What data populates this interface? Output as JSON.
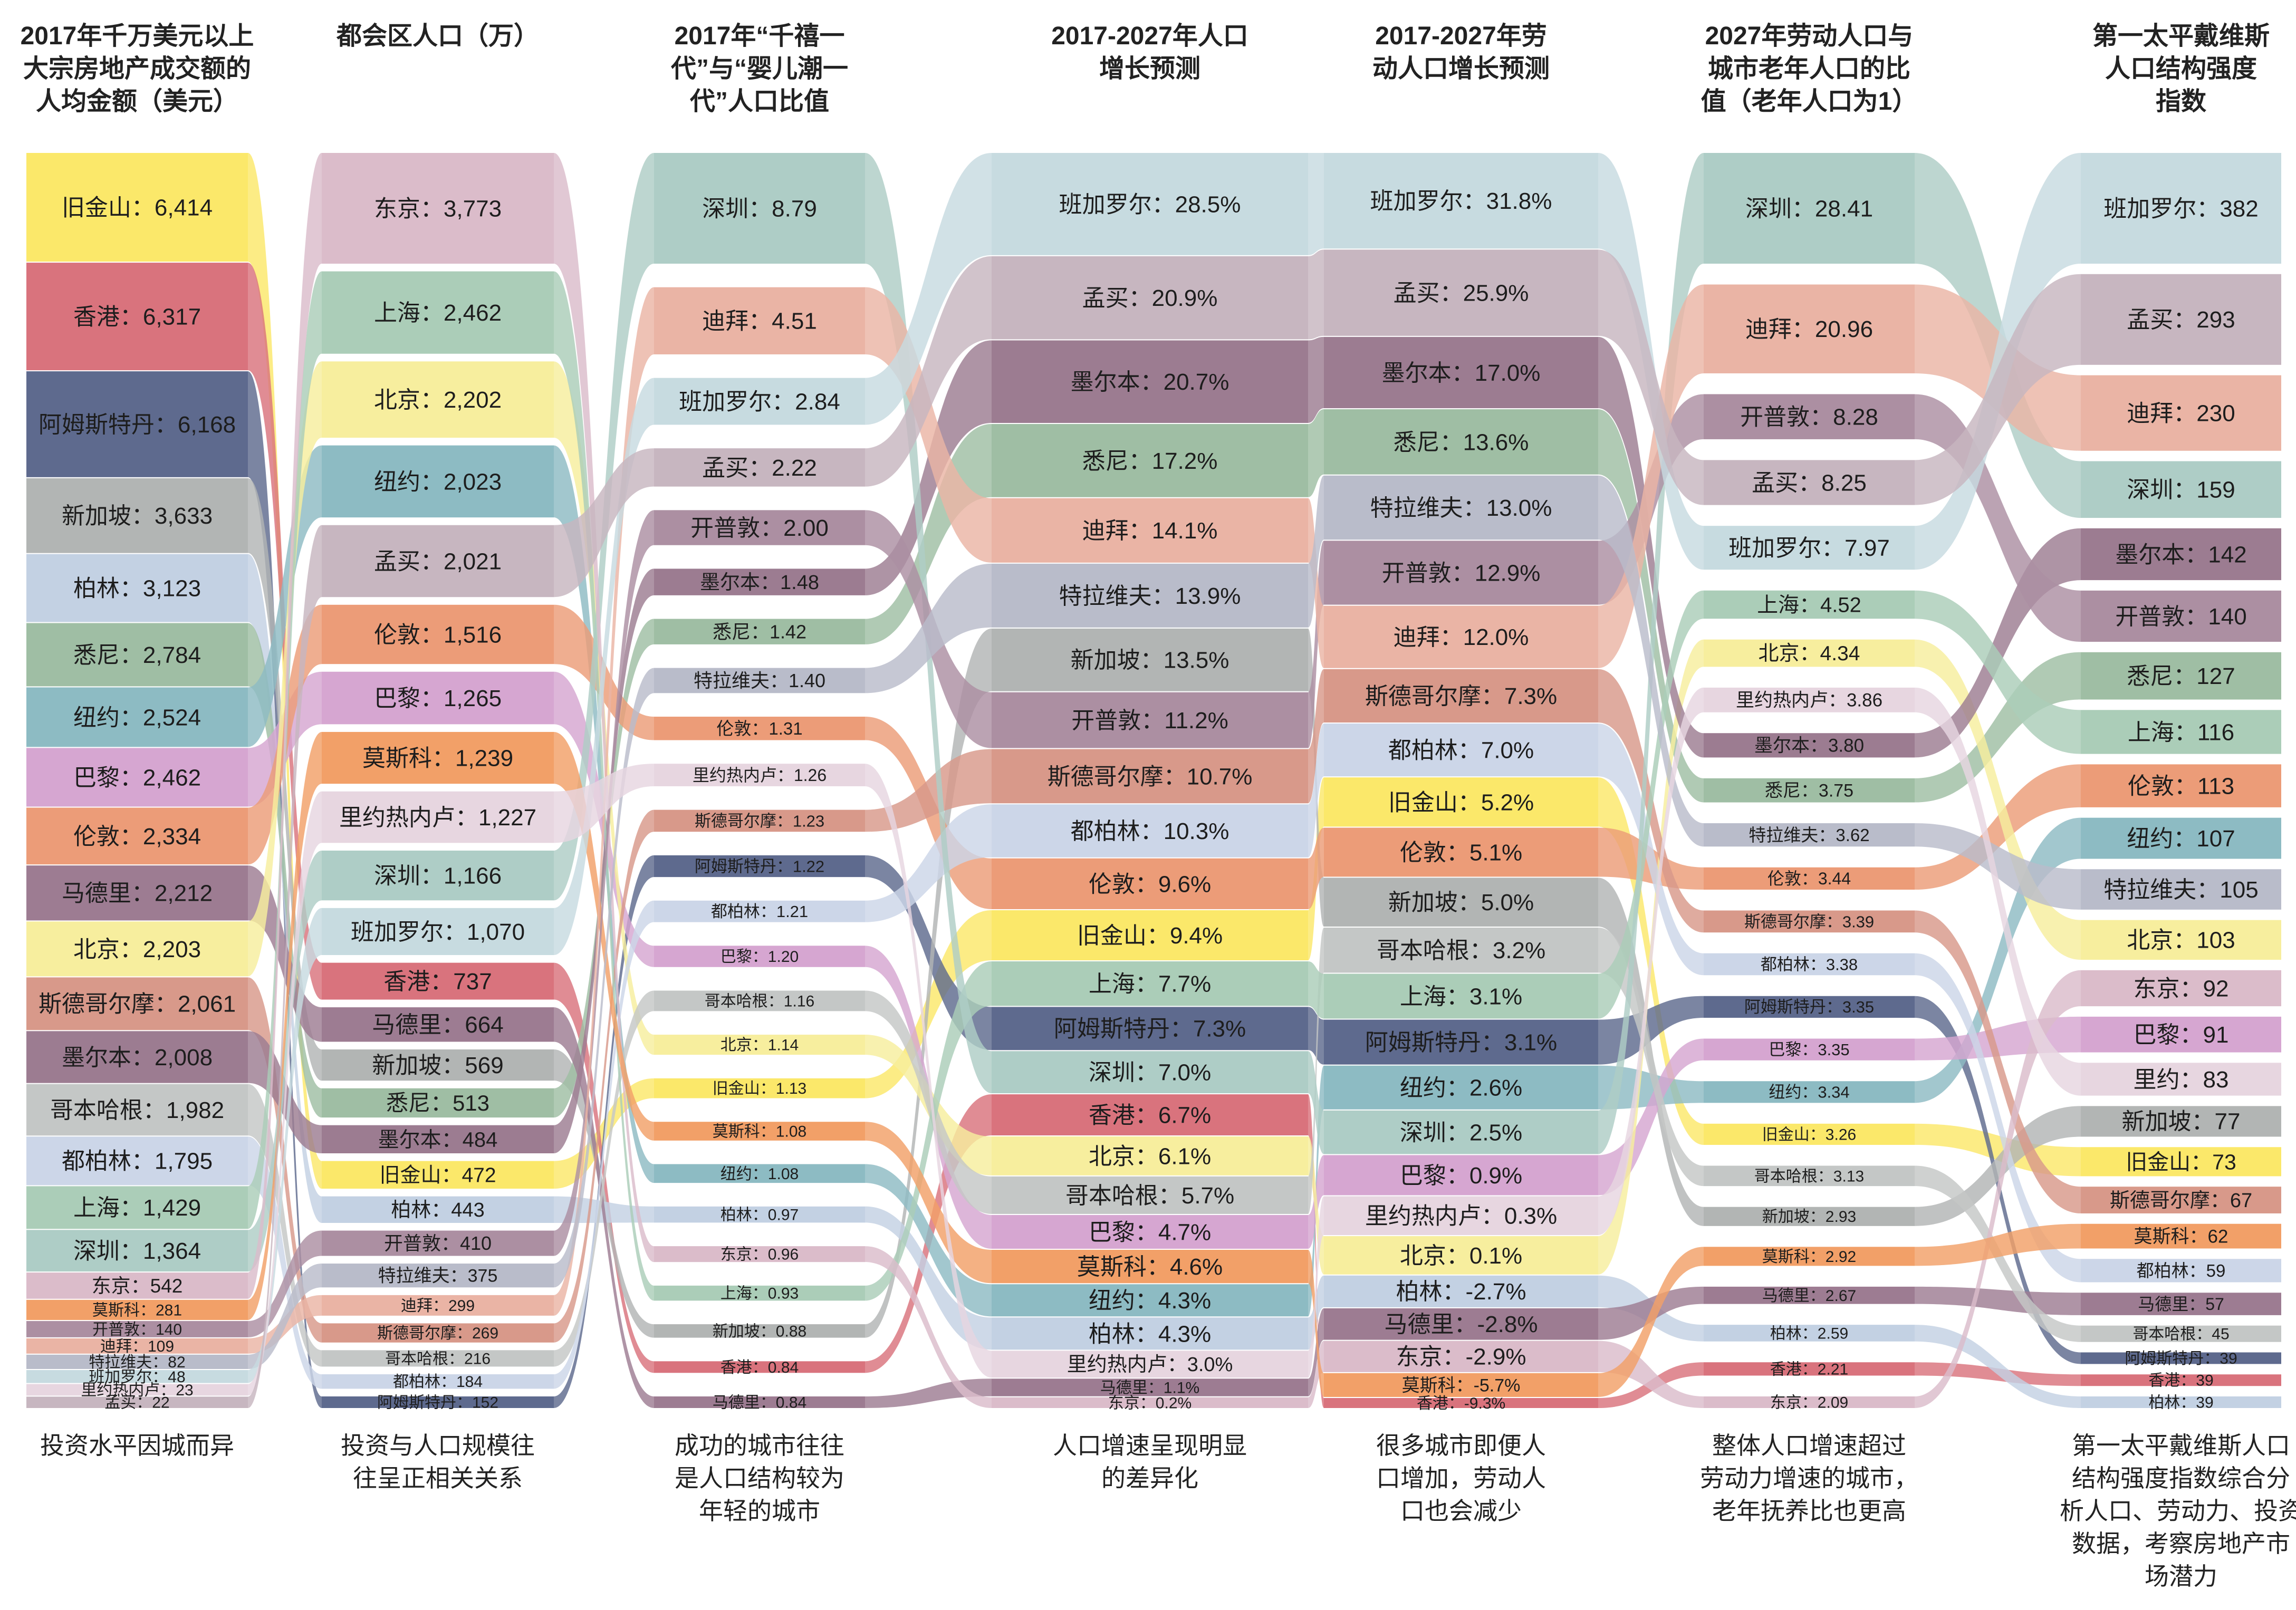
{
  "chart_data": {
    "type": "sankey-bump",
    "columns": [
      {
        "header": "2017年千万美元以上\n大宗房地产成交额的\n人均金额（美元）",
        "footer": "投资水平因城而异",
        "items": [
          {
            "city": "旧金山",
            "value": "6,414"
          },
          {
            "city": "香港",
            "value": "6,317"
          },
          {
            "city": "阿姆斯特丹",
            "value": "6,168"
          },
          {
            "city": "新加坡",
            "value": "3,633"
          },
          {
            "city": "柏林",
            "value": "3,123"
          },
          {
            "city": "悉尼",
            "value": "2,784"
          },
          {
            "city": "纽约",
            "value": "2,524"
          },
          {
            "city": "巴黎",
            "value": "2,462"
          },
          {
            "city": "伦敦",
            "value": "2,334"
          },
          {
            "city": "马德里",
            "value": "2,212"
          },
          {
            "city": "北京",
            "value": "2,203"
          },
          {
            "city": "斯德哥尔摩",
            "value": "2,061"
          },
          {
            "city": "墨尔本",
            "value": "2,008"
          },
          {
            "city": "哥本哈根",
            "value": "1,982"
          },
          {
            "city": "都柏林",
            "value": "1,795"
          },
          {
            "city": "上海",
            "value": "1,429"
          },
          {
            "city": "深圳",
            "value": "1,364"
          },
          {
            "city": "东京",
            "value": "542"
          },
          {
            "city": "莫斯科",
            "value": "281"
          },
          {
            "city": "开普敦",
            "value": "140"
          },
          {
            "city": "迪拜",
            "value": "109"
          },
          {
            "city": "特拉维夫",
            "value": "82"
          },
          {
            "city": "班加罗尔",
            "value": "48"
          },
          {
            "city": "里约热内卢",
            "value": "23"
          },
          {
            "city": "孟买",
            "value": "22"
          }
        ]
      },
      {
        "header": "都会区人口（万）",
        "footer": "投资与人口规模往\n往呈正相关关系",
        "items": [
          {
            "city": "东京",
            "value": "3,773"
          },
          {
            "city": "上海",
            "value": "2,462"
          },
          {
            "city": "北京",
            "value": "2,202"
          },
          {
            "city": "纽约",
            "value": "2,023"
          },
          {
            "city": "孟买",
            "value": "2,021"
          },
          {
            "city": "伦敦",
            "value": "1,516"
          },
          {
            "city": "巴黎",
            "value": "1,265"
          },
          {
            "city": "莫斯科",
            "value": "1,239"
          },
          {
            "city": "里约热内卢",
            "value": "1,227"
          },
          {
            "city": "深圳",
            "value": "1,166"
          },
          {
            "city": "班加罗尔",
            "value": "1,070"
          },
          {
            "city": "香港",
            "value": "737"
          },
          {
            "city": "马德里",
            "value": "664"
          },
          {
            "city": "新加坡",
            "value": "569"
          },
          {
            "city": "悉尼",
            "value": "513"
          },
          {
            "city": "墨尔本",
            "value": "484"
          },
          {
            "city": "旧金山",
            "value": "472"
          },
          {
            "city": "柏林",
            "value": "443"
          },
          {
            "city": "开普敦",
            "value": "410"
          },
          {
            "city": "特拉维夫",
            "value": "375"
          },
          {
            "city": "迪拜",
            "value": "299"
          },
          {
            "city": "斯德哥尔摩",
            "value": "269"
          },
          {
            "city": "哥本哈根",
            "value": "216"
          },
          {
            "city": "都柏林",
            "value": "184"
          },
          {
            "city": "阿姆斯特丹",
            "value": "152"
          }
        ]
      },
      {
        "header": "2017年“千禧一\n代”与“婴儿潮一\n代”人口比值",
        "footer": "成功的城市往往\n是人口结构较为\n年轻的城市",
        "items": [
          {
            "city": "深圳",
            "value": "8.79"
          },
          {
            "city": "迪拜",
            "value": "4.51"
          },
          {
            "city": "班加罗尔",
            "value": "2.84"
          },
          {
            "city": "孟买",
            "value": "2.22"
          },
          {
            "city": "开普敦",
            "value": "2.00"
          },
          {
            "city": "墨尔本",
            "value": "1.48"
          },
          {
            "city": "悉尼",
            "value": "1.42"
          },
          {
            "city": "特拉维夫",
            "value": "1.40"
          },
          {
            "city": "伦敦",
            "value": "1.31"
          },
          {
            "city": "里约热内卢",
            "value": "1.26"
          },
          {
            "city": "斯德哥尔摩",
            "value": "1.23"
          },
          {
            "city": "阿姆斯特丹",
            "value": "1.22"
          },
          {
            "city": "都柏林",
            "value": "1.21"
          },
          {
            "city": "巴黎",
            "value": "1.20"
          },
          {
            "city": "哥本哈根",
            "value": "1.16"
          },
          {
            "city": "北京",
            "value": "1.14"
          },
          {
            "city": "旧金山",
            "value": "1.13"
          },
          {
            "city": "莫斯科",
            "value": "1.08"
          },
          {
            "city": "纽约",
            "value": "1.08"
          },
          {
            "city": "柏林",
            "value": "0.97"
          },
          {
            "city": "东京",
            "value": "0.96"
          },
          {
            "city": "上海",
            "value": "0.93"
          },
          {
            "city": "新加坡",
            "value": "0.88"
          },
          {
            "city": "香港",
            "value": "0.84"
          },
          {
            "city": "马德里",
            "value": "0.84"
          }
        ]
      },
      {
        "header": "2017-2027年人口\n增长预测",
        "footer": "人口增速呈现明显\n的差异化",
        "items": [
          {
            "city": "班加罗尔",
            "value": "28.5%"
          },
          {
            "city": "孟买",
            "value": "20.9%"
          },
          {
            "city": "墨尔本",
            "value": "20.7%"
          },
          {
            "city": "悉尼",
            "value": "17.2%"
          },
          {
            "city": "迪拜",
            "value": "14.1%"
          },
          {
            "city": "特拉维夫",
            "value": "13.9%"
          },
          {
            "city": "新加坡",
            "value": "13.5%"
          },
          {
            "city": "开普敦",
            "value": "11.2%"
          },
          {
            "city": "斯德哥尔摩",
            "value": "10.7%"
          },
          {
            "city": "都柏林",
            "value": "10.3%"
          },
          {
            "city": "伦敦",
            "value": "9.6%"
          },
          {
            "city": "旧金山",
            "value": "9.4%"
          },
          {
            "city": "上海",
            "value": "7.7%"
          },
          {
            "city": "阿姆斯特丹",
            "value": "7.3%"
          },
          {
            "city": "深圳",
            "value": "7.0%"
          },
          {
            "city": "香港",
            "value": "6.7%"
          },
          {
            "city": "北京",
            "value": "6.1%"
          },
          {
            "city": "哥本哈根",
            "value": "5.7%"
          },
          {
            "city": "巴黎",
            "value": "4.7%"
          },
          {
            "city": "莫斯科",
            "value": "4.6%"
          },
          {
            "city": "纽约",
            "value": "4.3%"
          },
          {
            "city": "柏林",
            "value": "4.3%"
          },
          {
            "city": "里约热内卢",
            "value": "3.0%"
          },
          {
            "city": "马德里",
            "value": "1.1%"
          },
          {
            "city": "东京",
            "value": "0.2%"
          }
        ]
      },
      {
        "header": "2017-2027年劳\n动人口增长预测",
        "footer": "很多城市即便人\n口增加，劳动人\n口也会减少",
        "items": [
          {
            "city": "班加罗尔",
            "value": "31.8%"
          },
          {
            "city": "孟买",
            "value": "25.9%"
          },
          {
            "city": "墨尔本",
            "value": "17.0%"
          },
          {
            "city": "悉尼",
            "value": "13.6%"
          },
          {
            "city": "特拉维夫",
            "value": "13.0%"
          },
          {
            "city": "开普敦",
            "value": "12.9%"
          },
          {
            "city": "迪拜",
            "value": "12.0%"
          },
          {
            "city": "斯德哥尔摩",
            "value": "7.3%"
          },
          {
            "city": "都柏林",
            "value": "7.0%"
          },
          {
            "city": "旧金山",
            "value": "5.2%"
          },
          {
            "city": "伦敦",
            "value": "5.1%"
          },
          {
            "city": "新加坡",
            "value": "5.0%"
          },
          {
            "city": "哥本哈根",
            "value": "3.2%"
          },
          {
            "city": "上海",
            "value": "3.1%"
          },
          {
            "city": "阿姆斯特丹",
            "value": "3.1%"
          },
          {
            "city": "纽约",
            "value": "2.6%"
          },
          {
            "city": "深圳",
            "value": "2.5%"
          },
          {
            "city": "巴黎",
            "value": "0.9%"
          },
          {
            "city": "里约热内卢",
            "value": "0.3%"
          },
          {
            "city": "北京",
            "value": "0.1%"
          },
          {
            "city": "柏林",
            "value": "-2.7%"
          },
          {
            "city": "马德里",
            "value": "-2.8%"
          },
          {
            "city": "东京",
            "value": "-2.9%"
          },
          {
            "city": "莫斯科",
            "value": "-5.7%"
          },
          {
            "city": "香港",
            "value": "-9.3%"
          }
        ]
      },
      {
        "header": "2027年劳动人口与\n城市老年人口的比\n值（老年人口为1）",
        "footer": "整体人口增速超过\n劳动力增速的城市，\n老年抚养比也更高",
        "items": [
          {
            "city": "深圳",
            "value": "28.41"
          },
          {
            "city": "迪拜",
            "value": "20.96"
          },
          {
            "city": "开普敦",
            "value": "8.28"
          },
          {
            "city": "孟买",
            "value": "8.25"
          },
          {
            "city": "班加罗尔",
            "value": "7.97"
          },
          {
            "city": "上海",
            "value": "4.52"
          },
          {
            "city": "北京",
            "value": "4.34"
          },
          {
            "city": "里约热内卢",
            "value": "3.86"
          },
          {
            "city": "墨尔本",
            "value": "3.80"
          },
          {
            "city": "悉尼",
            "value": "3.75"
          },
          {
            "city": "特拉维夫",
            "value": "3.62"
          },
          {
            "city": "伦敦",
            "value": "3.44"
          },
          {
            "city": "斯德哥尔摩",
            "value": "3.39"
          },
          {
            "city": "都柏林",
            "value": "3.38"
          },
          {
            "city": "阿姆斯特丹",
            "value": "3.35"
          },
          {
            "city": "巴黎",
            "value": "3.35"
          },
          {
            "city": "纽约",
            "value": "3.34"
          },
          {
            "city": "旧金山",
            "value": "3.26"
          },
          {
            "city": "哥本哈根",
            "value": "3.13"
          },
          {
            "city": "新加坡",
            "value": "2.93"
          },
          {
            "city": "莫斯科",
            "value": "2.92"
          },
          {
            "city": "马德里",
            "value": "2.67"
          },
          {
            "city": "柏林",
            "value": "2.59"
          },
          {
            "city": "香港",
            "value": "2.21"
          },
          {
            "city": "东京",
            "value": "2.09"
          }
        ]
      },
      {
        "header": "第一太平戴维斯\n人口结构强度\n指数",
        "footer": "第一太平戴维斯人口\n结构强度指数综合分\n析人口、劳动力、投资\n数据，考察房地产市\n场潜力",
        "items": [
          {
            "city": "班加罗尔",
            "value": "382"
          },
          {
            "city": "孟买",
            "value": "293"
          },
          {
            "city": "迪拜",
            "value": "230"
          },
          {
            "city": "深圳",
            "value": "159"
          },
          {
            "city": "墨尔本",
            "value": "142"
          },
          {
            "city": "开普敦",
            "value": "140"
          },
          {
            "city": "悉尼",
            "value": "127"
          },
          {
            "city": "上海",
            "value": "116"
          },
          {
            "city": "伦敦",
            "value": "113"
          },
          {
            "city": "纽约",
            "value": "107"
          },
          {
            "city": "特拉维夫",
            "value": "105"
          },
          {
            "city": "北京",
            "value": "103"
          },
          {
            "city": "东京",
            "value": "92"
          },
          {
            "city": "巴黎",
            "value": "91"
          },
          {
            "city": "里约",
            "value": "83"
          },
          {
            "city": "新加坡",
            "value": "77"
          },
          {
            "city": "旧金山",
            "value": "73"
          },
          {
            "city": "斯德哥尔摩",
            "value": "67"
          },
          {
            "city": "莫斯科",
            "value": "62"
          },
          {
            "city": "都柏林",
            "value": "59"
          },
          {
            "city": "马德里",
            "value": "57"
          },
          {
            "city": "哥本哈根",
            "value": "45"
          },
          {
            "city": "阿姆斯特丹",
            "value": "39"
          },
          {
            "city": "香港",
            "value": "39"
          },
          {
            "city": "柏林",
            "value": "39"
          }
        ]
      }
    ],
    "colors": {
      "旧金山": "#fbe86a",
      "香港": "#d9737d",
      "阿姆斯特丹": "#5e6a8e",
      "新加坡": "#b2b5b4",
      "柏林": "#c3d1e3",
      "悉尼": "#9fbea4",
      "纽约": "#8dbbc3",
      "巴黎": "#d6a6d1",
      "伦敦": "#ec9c78",
      "马德里": "#9d7c92",
      "北京": "#f7ee9e",
      "斯德哥尔摩": "#d8998a",
      "墨尔本": "#9c7c91",
      "哥本哈根": "#c4c7c6",
      "都柏林": "#ccd6e8",
      "上海": "#abcdb8",
      "深圳": "#aecdc6",
      "东京": "#dbbcca",
      "莫斯科": "#f2a068",
      "开普敦": "#ac8fa2",
      "迪拜": "#eab4a5",
      "特拉维夫": "#b9bcca",
      "班加罗尔": "#c7dbe0",
      "里约热内卢": "#e7d6e0",
      "孟买": "#c7b6c0"
    }
  }
}
